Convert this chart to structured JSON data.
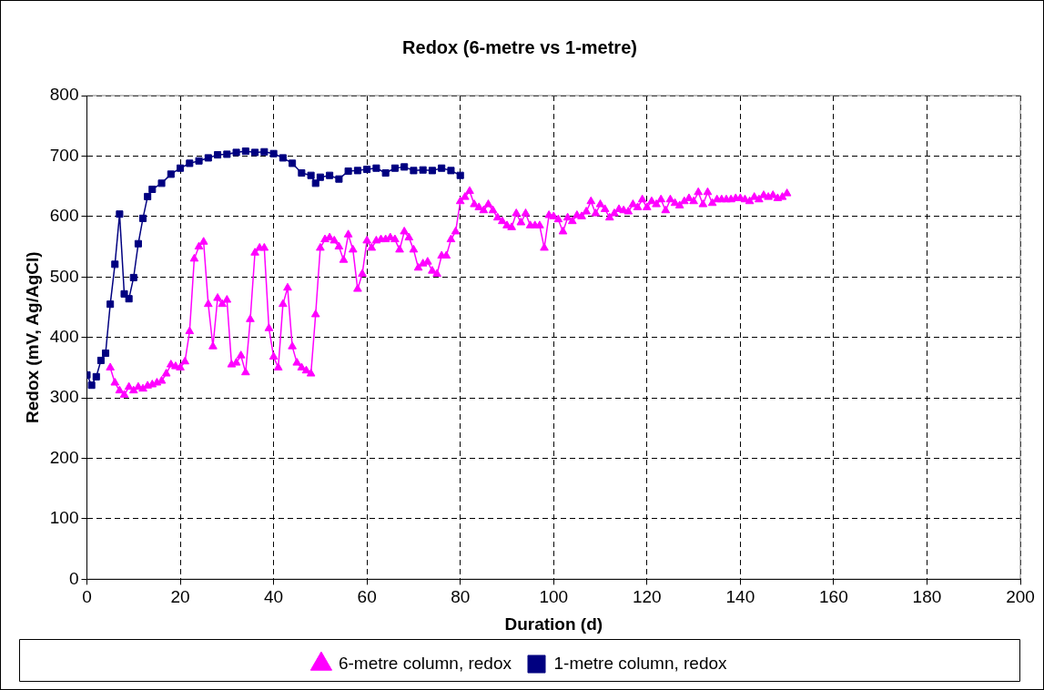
{
  "chart_data": {
    "type": "line",
    "title": "Redox (6-metre vs 1-metre)",
    "xlabel": "Duration (d)",
    "ylabel": "Redox (mV, Ag/AgCl)",
    "xlim": [
      0,
      200
    ],
    "xticks": [
      0,
      20,
      40,
      60,
      80,
      100,
      120,
      140,
      160,
      180,
      200
    ],
    "ylim": [
      0,
      800
    ],
    "yticks": [
      0,
      100,
      200,
      300,
      400,
      500,
      600,
      700,
      800
    ],
    "grid": true,
    "legend": "bottom",
    "line_style": "solid",
    "series": [
      {
        "name": "6-metre column, redox",
        "color": "#ff00ff",
        "marker": "triangle",
        "x": [
          5,
          6,
          7,
          8,
          9,
          10,
          11,
          12,
          13,
          14,
          15,
          16,
          17,
          18,
          19,
          20,
          21,
          22,
          23,
          24,
          25,
          26,
          27,
          28,
          29,
          30,
          31,
          32,
          33,
          34,
          35,
          36,
          37,
          38,
          39,
          40,
          41,
          42,
          43,
          44,
          45,
          46,
          47,
          48,
          49,
          50,
          51,
          52,
          53,
          54,
          55,
          56,
          57,
          58,
          59,
          60,
          61,
          62,
          63,
          64,
          65,
          66,
          67,
          68,
          69,
          70,
          71,
          72,
          73,
          74,
          75,
          76,
          77,
          78,
          79,
          80,
          81,
          82,
          83,
          84,
          85,
          86,
          87,
          88,
          89,
          90,
          91,
          92,
          93,
          94,
          95,
          96,
          97,
          98,
          99,
          100,
          101,
          102,
          103,
          104,
          105,
          106,
          107,
          108,
          109,
          110,
          111,
          112,
          113,
          114,
          115,
          116,
          117,
          118,
          119,
          120,
          121,
          122,
          123,
          124,
          125,
          126,
          127,
          128,
          129,
          130,
          131,
          132,
          133,
          134,
          135,
          136,
          137,
          138,
          139,
          140,
          141,
          142,
          143,
          144,
          145,
          146,
          147,
          148,
          149,
          150
        ],
        "values": [
          350,
          325,
          312,
          305,
          318,
          312,
          318,
          315,
          320,
          322,
          325,
          328,
          340,
          355,
          352,
          350,
          360,
          410,
          530,
          550,
          558,
          455,
          385,
          465,
          455,
          462,
          355,
          358,
          370,
          342,
          430,
          540,
          548,
          548,
          415,
          368,
          350,
          455,
          482,
          385,
          358,
          350,
          345,
          340,
          438,
          548,
          562,
          565,
          560,
          550,
          528,
          570,
          545,
          480,
          505,
          560,
          548,
          560,
          562,
          562,
          565,
          562,
          545,
          575,
          565,
          545,
          515,
          522,
          525,
          510,
          505,
          535,
          535,
          562,
          575,
          625,
          632,
          642,
          620,
          615,
          610,
          620,
          610,
          598,
          592,
          585,
          582,
          605,
          590,
          605,
          585,
          585,
          585,
          548,
          602,
          600,
          595,
          575,
          598,
          592,
          602,
          600,
          608,
          625,
          605,
          620,
          612,
          598,
          605,
          612,
          610,
          608,
          620,
          615,
          628,
          615,
          625,
          620,
          628,
          610,
          628,
          622,
          618,
          625,
          630,
          625,
          640,
          620,
          640,
          622,
          628,
          628,
          628,
          628,
          630,
          630,
          628,
          625,
          632,
          628,
          635,
          632,
          635,
          630,
          632,
          638
        ]
      },
      {
        "name": "1-metre column, redox",
        "color": "#000080",
        "marker": "square",
        "x": [
          0,
          1,
          2,
          3,
          4,
          5,
          6,
          7,
          8,
          9,
          10,
          11,
          12,
          13,
          14,
          16,
          18,
          20,
          22,
          24,
          26,
          28,
          30,
          32,
          34,
          36,
          38,
          40,
          42,
          44,
          46,
          48,
          49,
          50,
          52,
          54,
          56,
          58,
          60,
          62,
          64,
          66,
          68,
          70,
          72,
          74,
          76,
          78,
          80
        ],
        "values": [
          338,
          321,
          335,
          362,
          374,
          455,
          521,
          604,
          472,
          464,
          499,
          555,
          597,
          633,
          645,
          655,
          670,
          680,
          688,
          692,
          697,
          702,
          703,
          706,
          708,
          706,
          707,
          704,
          697,
          688,
          672,
          668,
          655,
          665,
          668,
          662,
          675,
          676,
          678,
          680,
          672,
          680,
          682,
          676,
          677,
          676,
          680,
          676,
          668
        ]
      }
    ]
  }
}
